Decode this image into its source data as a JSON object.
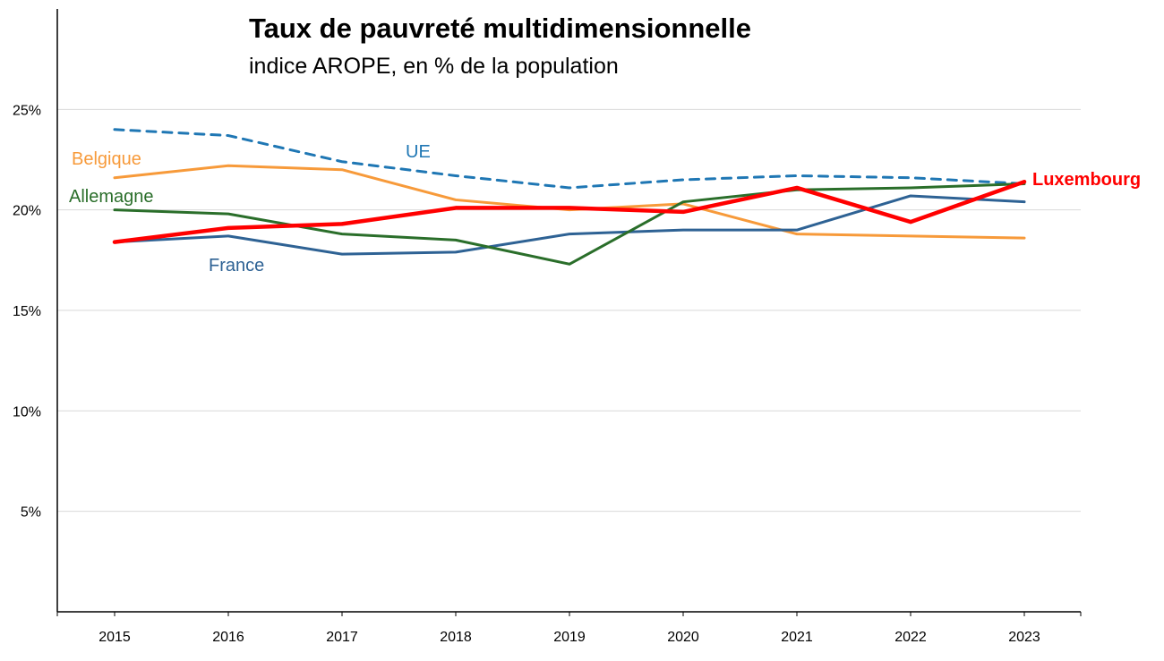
{
  "chart_data": {
    "type": "line",
    "title": "Taux de pauvreté multidimensionnelle",
    "subtitle": "indice AROPE, en % de la population",
    "xlabel": "",
    "ylabel": "",
    "x": [
      "2015",
      "2016",
      "2017",
      "2018",
      "2019",
      "2020",
      "2021",
      "2022",
      "2023"
    ],
    "ylim": [
      0,
      30
    ],
    "yticks": [
      5,
      10,
      15,
      20,
      25
    ],
    "ytick_labels": [
      "5%",
      "10%",
      "15%",
      "20%",
      "25%"
    ],
    "grid": true,
    "series": [
      {
        "name": "UE",
        "color": "#1f77b4",
        "dash": true,
        "values": [
          24.0,
          23.7,
          22.4,
          21.7,
          21.1,
          21.5,
          21.7,
          21.6,
          21.3
        ]
      },
      {
        "name": "Belgique",
        "color": "#f79a3a",
        "dash": false,
        "values": [
          21.6,
          22.2,
          22.0,
          20.5,
          20.0,
          20.3,
          18.8,
          18.7,
          18.6
        ]
      },
      {
        "name": "Allemagne",
        "color": "#2a6e2a",
        "dash": false,
        "values": [
          20.0,
          19.8,
          18.8,
          18.5,
          17.3,
          20.4,
          21.0,
          21.1,
          21.3
        ]
      },
      {
        "name": "France",
        "color": "#2e6294",
        "dash": false,
        "values": [
          18.4,
          18.7,
          17.8,
          17.9,
          18.8,
          19.0,
          19.0,
          20.7,
          20.4
        ]
      },
      {
        "name": "Luxembourg",
        "color": "#ff0000",
        "dash": false,
        "bold": true,
        "values": [
          18.4,
          19.1,
          19.3,
          20.1,
          20.1,
          19.9,
          21.1,
          19.4,
          21.4
        ]
      }
    ]
  }
}
